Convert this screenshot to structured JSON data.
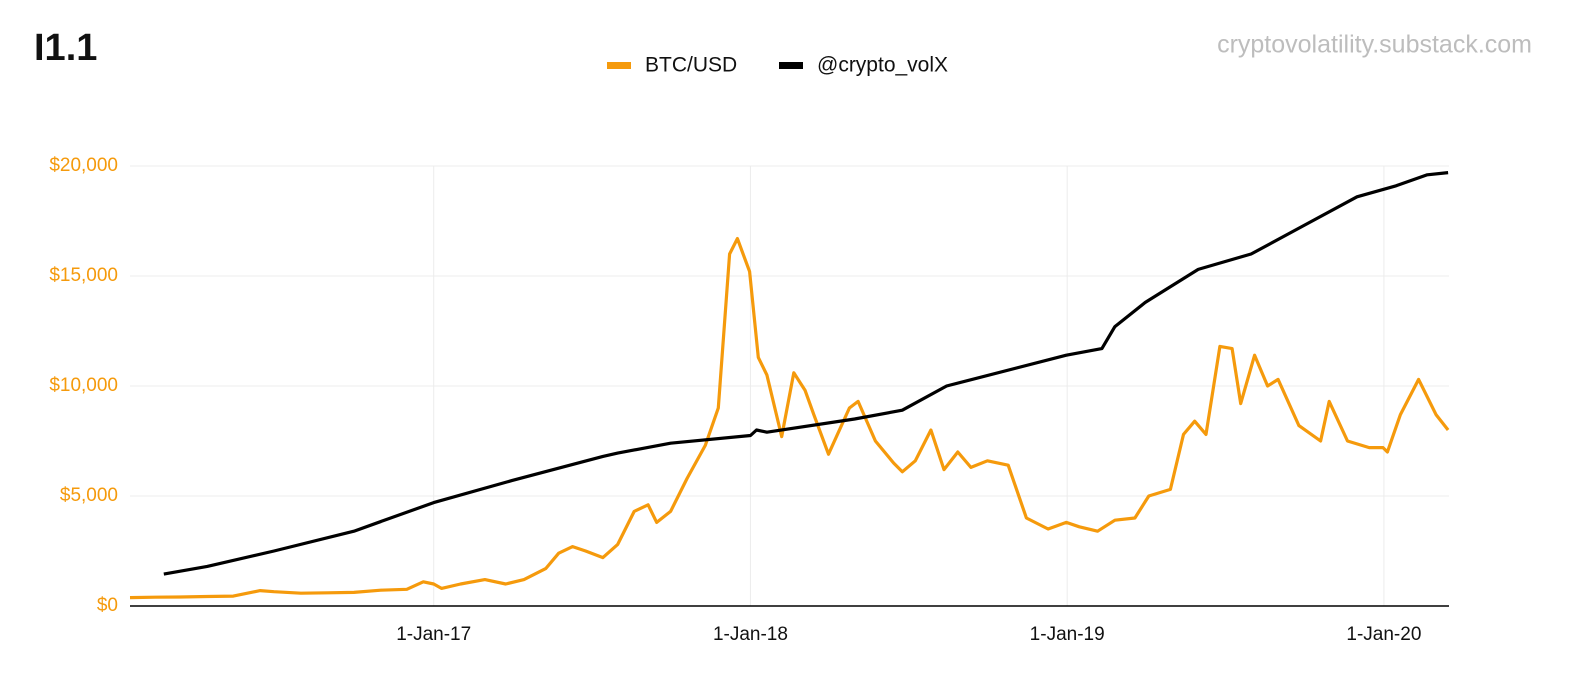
{
  "chart_data": {
    "type": "line",
    "title": "I1.1",
    "source": "cryptovolatility.substack.com",
    "xlim": [
      "2016-01-17",
      "2020-03-16"
    ],
    "xticks": [
      {
        "value": "2017-01-01",
        "label": "1-Jan-17"
      },
      {
        "value": "2018-01-01",
        "label": "1-Jan-18"
      },
      {
        "value": "2019-01-01",
        "label": "1-Jan-19"
      },
      {
        "value": "2020-01-01",
        "label": "1-Jan-20"
      }
    ],
    "ylim": [
      0,
      20000
    ],
    "yticks": [
      {
        "value": 0,
        "label": "$0"
      },
      {
        "value": 5000,
        "label": "$5,000"
      },
      {
        "value": 10000,
        "label": "$10,000"
      },
      {
        "value": 15000,
        "label": "$15,000"
      },
      {
        "value": 20000,
        "label": "$20,000"
      }
    ],
    "grid": true,
    "legend": "top",
    "series": [
      {
        "name": "BTC/USD",
        "color": "#f59a0c",
        "x": [
          "2016-01-17",
          "2016-02-15",
          "2016-03-15",
          "2016-04-15",
          "2016-05-15",
          "2016-06-15",
          "2016-07-01",
          "2016-08-01",
          "2016-09-01",
          "2016-10-01",
          "2016-11-01",
          "2016-12-01",
          "2016-12-20",
          "2017-01-01",
          "2017-01-10",
          "2017-02-01",
          "2017-03-01",
          "2017-03-25",
          "2017-04-15",
          "2017-05-10",
          "2017-05-25",
          "2017-06-10",
          "2017-06-25",
          "2017-07-15",
          "2017-08-01",
          "2017-08-20",
          "2017-09-05",
          "2017-09-15",
          "2017-10-01",
          "2017-10-20",
          "2017-11-10",
          "2017-11-25",
          "2017-12-08",
          "2017-12-17",
          "2017-12-31",
          "2018-01-10",
          "2018-01-20",
          "2018-02-06",
          "2018-02-20",
          "2018-03-05",
          "2018-03-15",
          "2018-04-01",
          "2018-04-25",
          "2018-05-05",
          "2018-05-25",
          "2018-06-15",
          "2018-06-25",
          "2018-07-10",
          "2018-07-28",
          "2018-08-12",
          "2018-08-28",
          "2018-09-12",
          "2018-10-01",
          "2018-10-25",
          "2018-11-15",
          "2018-12-10",
          "2018-12-31",
          "2019-01-15",
          "2019-02-05",
          "2019-02-25",
          "2019-03-20",
          "2019-04-05",
          "2019-04-30",
          "2019-05-15",
          "2019-05-28",
          "2019-06-10",
          "2019-06-26",
          "2019-07-10",
          "2019-07-20",
          "2019-08-05",
          "2019-08-20",
          "2019-09-01",
          "2019-09-25",
          "2019-10-20",
          "2019-10-30",
          "2019-11-20",
          "2019-12-15",
          "2019-12-31",
          "2020-01-05",
          "2020-01-20",
          "2020-02-10",
          "2020-03-01",
          "2020-03-15"
        ],
        "values": [
          380,
          400,
          410,
          430,
          450,
          700,
          650,
          580,
          600,
          620,
          720,
          760,
          1100,
          1000,
          800,
          1000,
          1200,
          1000,
          1200,
          1700,
          2400,
          2700,
          2500,
          2200,
          2800,
          4300,
          4600,
          3800,
          4300,
          5800,
          7300,
          9000,
          16000,
          16700,
          15200,
          11300,
          10500,
          7700,
          10600,
          9800,
          8700,
          6900,
          9000,
          9300,
          7500,
          6500,
          6100,
          6600,
          8000,
          6200,
          7000,
          6300,
          6600,
          6400,
          4000,
          3500,
          3800,
          3600,
          3400,
          3900,
          4000,
          5000,
          5300,
          7800,
          8400,
          7800,
          11800,
          11700,
          9200,
          11400,
          10000,
          10300,
          8200,
          7500,
          9300,
          7500,
          7200,
          7200,
          7000,
          8700,
          10300,
          8700,
          8000
        ]
      },
      {
        "name": "@crypto_volX",
        "color": "#000000",
        "x": [
          "2016-02-25",
          "2016-04-15",
          "2016-07-01",
          "2016-10-01",
          "2017-01-01",
          "2017-04-01",
          "2017-07-15",
          "2017-08-01",
          "2017-10-01",
          "2018-01-01",
          "2018-01-08",
          "2018-01-20",
          "2018-05-01",
          "2018-06-25",
          "2018-08-15",
          "2018-12-31",
          "2019-02-10",
          "2019-02-25",
          "2019-04-01",
          "2019-06-01",
          "2019-08-01",
          "2019-10-01",
          "2019-12-01",
          "2020-01-15",
          "2020-02-20",
          "2020-03-15"
        ],
        "values": [
          1450,
          1800,
          2500,
          3400,
          4700,
          5700,
          6800,
          6950,
          7400,
          7750,
          8000,
          7900,
          8500,
          8900,
          10000,
          11400,
          11700,
          12700,
          13800,
          15300,
          16000,
          17300,
          18600,
          19100,
          19600,
          19700
        ]
      }
    ]
  }
}
